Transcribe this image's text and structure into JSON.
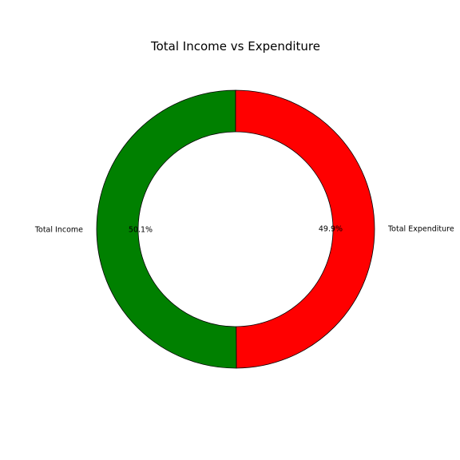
{
  "chart_data": {
    "type": "pie",
    "title": "Total Income vs Expenditure",
    "donut": true,
    "start_angle_deg": 90,
    "direction": "counterclockwise",
    "slices": [
      {
        "label": "Total Income",
        "value": 50.1,
        "percent_label": "50.1%",
        "color": "#008000"
      },
      {
        "label": "Total Expenditure",
        "value": 49.9,
        "percent_label": "49.9%",
        "color": "#ff0000"
      }
    ],
    "edge_color": "#000000"
  }
}
